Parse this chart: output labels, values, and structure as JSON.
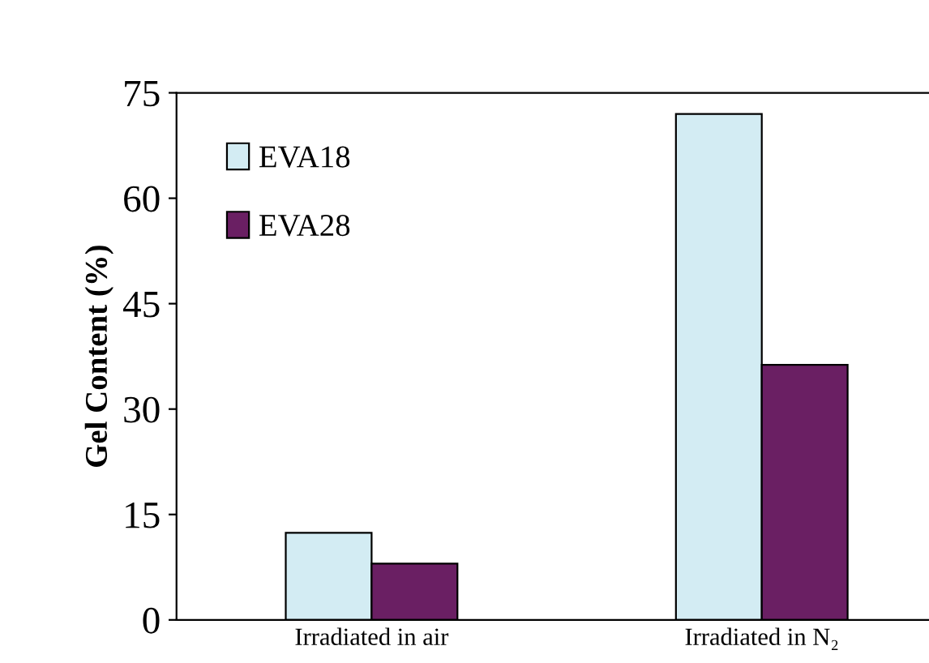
{
  "chart_data": {
    "type": "bar",
    "ylabel": "Gel Content (%)",
    "categories": [
      "Irradiated in air",
      "Irradiated in N₂"
    ],
    "series": [
      {
        "name": "EVA18",
        "color": "#d3ecf3",
        "values": [
          12.4,
          72.0
        ]
      },
      {
        "name": "EVA28",
        "color": "#6a1f63",
        "values": [
          8.0,
          36.3
        ]
      }
    ],
    "ylim": [
      0,
      75
    ],
    "yticks": [
      0,
      15,
      30,
      45,
      60,
      75
    ],
    "grid": false,
    "legend": "top left"
  }
}
